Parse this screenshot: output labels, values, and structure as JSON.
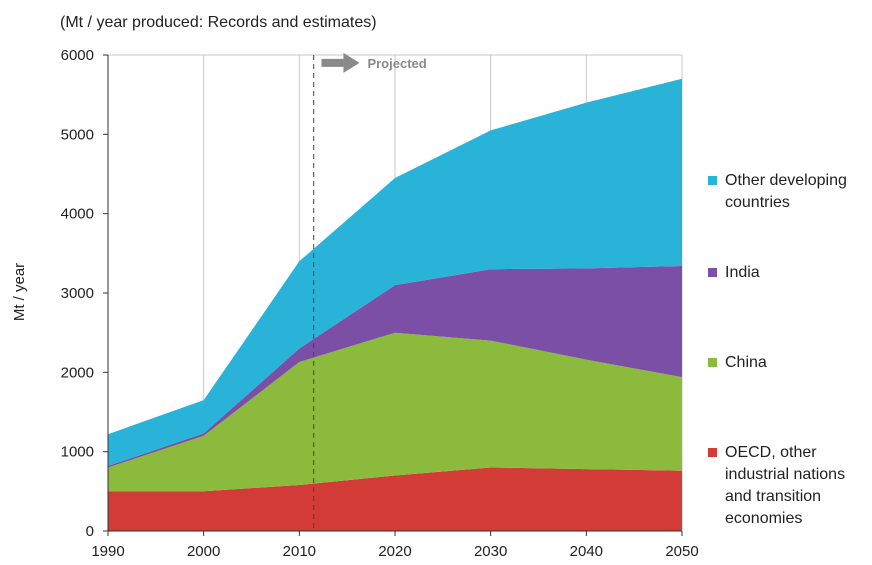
{
  "chart_data": {
    "type": "area",
    "stacked": true,
    "title": "",
    "subtitle": "(Mt / year produced: Records and estimates)",
    "xlabel": "",
    "ylabel": "Mt / year",
    "x": [
      1990,
      2000,
      2010,
      2020,
      2030,
      2040,
      2050
    ],
    "x_ticks": [
      "1990",
      "2000",
      "2010",
      "2020",
      "2030",
      "2040",
      "2050"
    ],
    "y_ticks": [
      "0",
      "1000",
      "2000",
      "3000",
      "4000",
      "5000",
      "6000"
    ],
    "xlim": [
      1990,
      2050
    ],
    "ylim": [
      0,
      6000
    ],
    "grid": "vertical",
    "legend_position": "right",
    "series": [
      {
        "name": "OECD, other industrial nations and transition economies",
        "color": "#d23b36",
        "values": [
          500,
          500,
          580,
          700,
          800,
          780,
          760
        ]
      },
      {
        "name": "China",
        "color": "#8cba3d",
        "values": [
          300,
          700,
          1550,
          1800,
          1600,
          1380,
          1180
        ]
      },
      {
        "name": "India",
        "color": "#7b4fa6",
        "values": [
          20,
          30,
          170,
          600,
          900,
          1150,
          1400
        ]
      },
      {
        "name": "Other developing countries",
        "color": "#2ab3d8",
        "values": [
          400,
          420,
          1100,
          1350,
          1750,
          2090,
          2360
        ]
      }
    ],
    "legend_order": [
      3,
      2,
      1,
      0
    ],
    "legend_lines": [
      [
        "Other developing",
        "countries"
      ],
      [
        "India"
      ],
      [
        "China"
      ],
      [
        "OECD, other",
        "industrial nations",
        "and transition",
        "economies"
      ]
    ],
    "annotations": [
      {
        "type": "vline",
        "x": 2011.5,
        "style": "dashed"
      },
      {
        "type": "arrow-label",
        "text": "Projected",
        "x": 2012,
        "y": 5900
      }
    ]
  }
}
